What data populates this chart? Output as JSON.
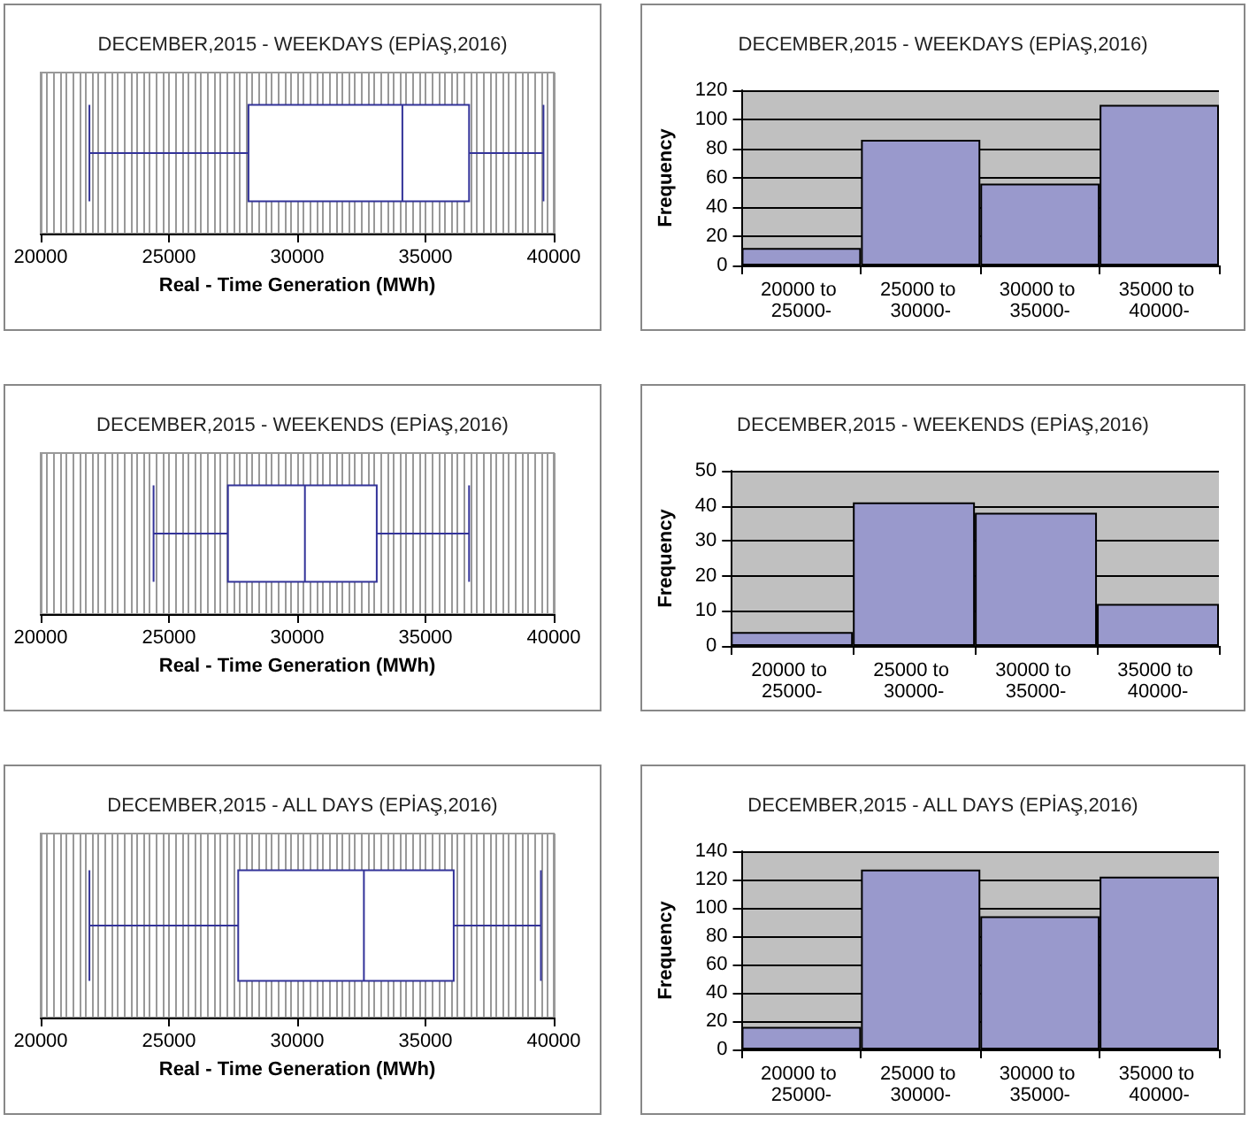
{
  "chart_data": [
    {
      "type": "box",
      "orientation": "horizontal",
      "title": "DECEMBER,2015 - WEEKDAYS (EPİAŞ,2016)",
      "xlabel": "Real - Time Generation (MWh)",
      "categories": [
        null
      ],
      "color": "#333399",
      "boxes": [
        {
          "low": 21900,
          "q1": 28100,
          "median": 34100,
          "q3": 36700,
          "high": 39600
        }
      ],
      "xlim": [
        20000,
        40000
      ],
      "xticks": [
        20000,
        25000,
        30000,
        35000,
        40000
      ],
      "grid": "x",
      "tick_labels": "x"
    },
    {
      "type": "bar",
      "title": "DECEMBER,2015 - WEEKDAYS (EPİAŞ,2016)",
      "ylabel": "Frequency",
      "categories": [
        "20000 to 25000-",
        "25000 to 30000-",
        "30000 to 35000-",
        "35000 to 40000-"
      ],
      "values": [
        12,
        86,
        56,
        110
      ],
      "color": "#9999cc",
      "ylim": [
        0,
        120
      ],
      "yticks": [
        0,
        20,
        40,
        60,
        80,
        100,
        120
      ],
      "grid": "y"
    },
    {
      "type": "box",
      "orientation": "horizontal",
      "title": "DECEMBER,2015 - WEEKENDS (EPİAŞ,2016)",
      "xlabel": "Real - Time Generation (MWh)",
      "categories": [
        null
      ],
      "color": "#333399",
      "boxes": [
        {
          "low": 24400,
          "q1": 27300,
          "median": 30300,
          "q3": 33100,
          "high": 36700
        }
      ],
      "xlim": [
        20000,
        40000
      ],
      "xticks": [
        20000,
        25000,
        30000,
        35000,
        40000
      ],
      "grid": "x",
      "tick_labels": "x"
    },
    {
      "type": "bar",
      "title": "DECEMBER,2015 - WEEKENDS (EPİAŞ,2016)",
      "ylabel": "Frequency",
      "categories": [
        "20000 to 25000-",
        "25000 to 30000-",
        "30000 to 35000-",
        "35000 to 40000-"
      ],
      "values": [
        4,
        41,
        38,
        12
      ],
      "color": "#9999cc",
      "ylim": [
        0,
        50
      ],
      "yticks": [
        0,
        10,
        20,
        30,
        40,
        50
      ],
      "grid": "y"
    },
    {
      "type": "box",
      "orientation": "horizontal",
      "title": "DECEMBER,2015 - ALL DAYS (EPİAŞ,2016)",
      "xlabel": "Real - Time Generation (MWh)",
      "categories": [
        null
      ],
      "color": "#333399",
      "boxes": [
        {
          "low": 21900,
          "q1": 27700,
          "median": 32600,
          "q3": 36100,
          "high": 39500
        }
      ],
      "xlim": [
        20000,
        40000
      ],
      "xticks": [
        20000,
        25000,
        30000,
        35000,
        40000
      ],
      "grid": "x",
      "tick_labels": "x"
    },
    {
      "type": "bar",
      "title": "DECEMBER,2015 - ALL DAYS (EPİAŞ,2016)",
      "ylabel": "Frequency",
      "categories": [
        "20000 to 25000-",
        "25000 to 30000-",
        "30000 to 35000-",
        "35000 to 40000-"
      ],
      "values": [
        16,
        127,
        94,
        122
      ],
      "color": "#9999cc",
      "ylim": [
        0,
        140
      ],
      "yticks": [
        0,
        20,
        40,
        60,
        80,
        100,
        120,
        140
      ],
      "grid": "y"
    }
  ]
}
